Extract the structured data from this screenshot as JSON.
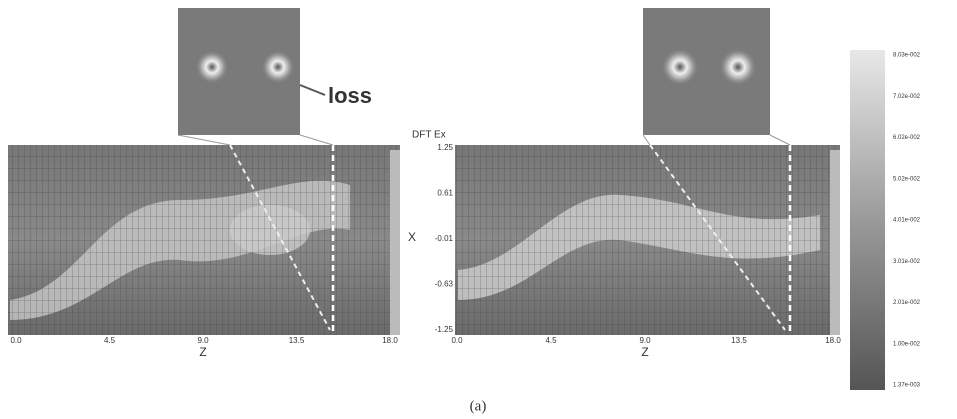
{
  "figure": {
    "annotation": "loss",
    "quantity": "DFT Ex",
    "y_axis_label": "X",
    "caption": "(a)",
    "panels": [
      {
        "x_ticks": [
          "0.0",
          "4.5",
          "9.0",
          "13.5",
          "18.0"
        ],
        "x_axis_label": "Z"
      },
      {
        "x_ticks": [
          "0.0",
          "4.5",
          "9.0",
          "13.5",
          "18.0"
        ],
        "x_axis_label": "Z",
        "y_ticks": [
          "1.25",
          "0.61",
          "-0.01",
          "-0.63",
          "-1.25"
        ]
      }
    ],
    "colorbar_ticks": [
      "8.03e-002",
      "7.02e-002",
      "6.02e-002",
      "5.02e-002",
      "4.01e-002",
      "3.01e-002",
      "2.01e-002",
      "1.00e-002",
      "1.37e-003"
    ]
  }
}
